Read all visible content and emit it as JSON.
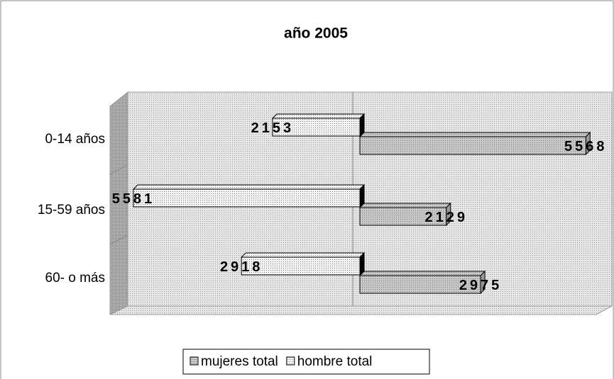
{
  "chart_data": {
    "type": "bar",
    "orientation": "horizontal",
    "title": "año 2005",
    "categories": [
      "0-14 años",
      "15-59 años",
      "60- o más"
    ],
    "series": [
      {
        "name": "mujeres total",
        "color": "#c8c8c8",
        "side": "right",
        "values": [
          5568,
          2129,
          2975
        ]
      },
      {
        "name": "hombre total",
        "color": "#f4f4f4",
        "side": "left",
        "values": [
          2153,
          5581,
          2918
        ]
      }
    ],
    "xlim": [
      0,
      6000
    ],
    "legend": "bottom"
  }
}
